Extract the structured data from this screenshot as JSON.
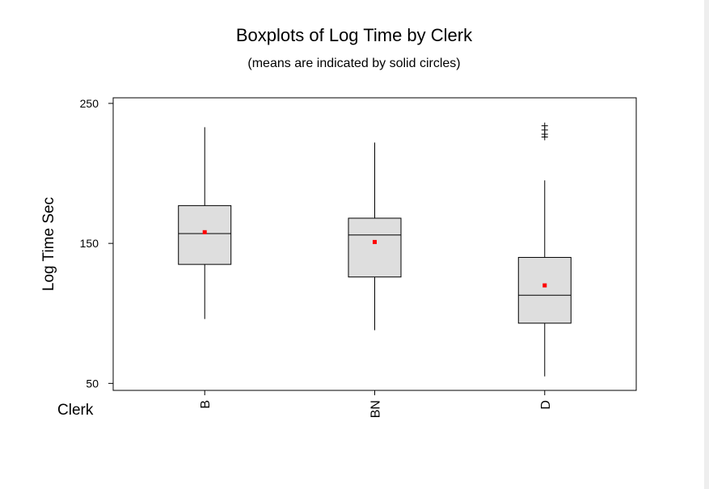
{
  "chart_data": {
    "type": "boxplot",
    "title": "Boxplots of Log Time by Clerk",
    "subtitle": "(means are indicated by solid circles)",
    "ylabel": "Log Time Sec",
    "xlabel": "Clerk",
    "ylim": [
      45,
      254
    ],
    "yticks": [
      50,
      150,
      250
    ],
    "grid": false,
    "colors": {
      "box_fill": "#dedede",
      "mean_marker": "#ff0000",
      "line": "#000000"
    },
    "boxes": [
      {
        "category": "B",
        "whisker_low": 96,
        "q1": 135,
        "median": 157,
        "q3": 177,
        "whisker_high": 233,
        "mean": 158,
        "outliers": []
      },
      {
        "category": "BN",
        "whisker_low": 88,
        "q1": 126,
        "median": 156,
        "q3": 168,
        "whisker_high": 222,
        "mean": 151,
        "outliers": []
      },
      {
        "category": "D",
        "whisker_low": 55,
        "q1": 93,
        "median": 113,
        "q3": 140,
        "whisker_high": 195,
        "mean": 120,
        "outliers": [
          234,
          231,
          228,
          226
        ]
      }
    ]
  }
}
